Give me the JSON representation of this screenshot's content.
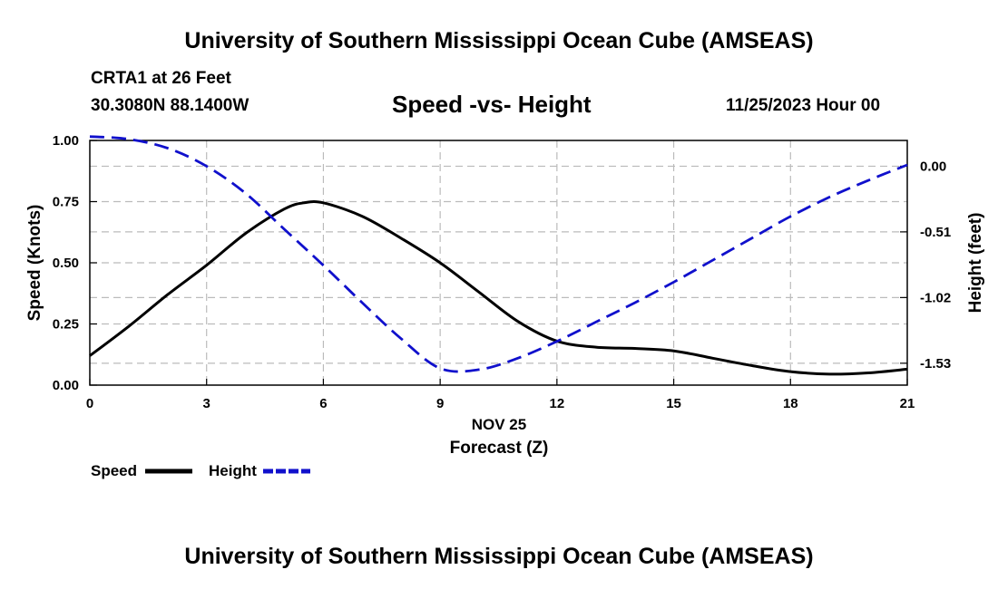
{
  "header": {
    "main_title": "University of Southern Mississippi Ocean Cube (AMSEAS)",
    "station": "CRTA1 at 26 Feet",
    "location": "30.3080N  88.1400W",
    "datetime": "11/25/2023 Hour 00",
    "footer_title": "University of Southern Mississippi Ocean Cube (AMSEAS)"
  },
  "colors": {
    "speed": "#000000",
    "height": "#1010cc",
    "grid": "#bbbbbb"
  },
  "chart_data": {
    "type": "line",
    "title": "Speed -vs- Height",
    "xlabel": "Forecast (Z)",
    "xlabel_date": "NOV 25",
    "ylabel": "Speed (Knots)",
    "ylabel_right": "Height (feet)",
    "xlim": [
      0,
      21
    ],
    "ylim": [
      0,
      1.0
    ],
    "ylim_right": [
      -1.7,
      0.2
    ],
    "x_ticks": [
      0,
      3,
      6,
      9,
      12,
      15,
      18,
      21
    ],
    "y_ticks": [
      "0.00",
      "0.25",
      "0.50",
      "0.75",
      "1.00"
    ],
    "y_ticks_right": [
      "0.00",
      "-0.51",
      "-1.02",
      "-1.53"
    ],
    "legend": [
      {
        "label": "Speed",
        "style": "solid"
      },
      {
        "label": "Height",
        "style": "dashed"
      }
    ],
    "series": [
      {
        "name": "Speed",
        "axis": "left",
        "x": [
          0,
          1,
          2,
          3,
          4,
          5,
          5.5,
          6,
          7,
          8,
          9,
          10,
          11,
          12,
          13,
          14,
          15,
          16,
          17,
          18,
          19,
          20,
          21
        ],
        "values": [
          0.12,
          0.24,
          0.37,
          0.49,
          0.62,
          0.72,
          0.745,
          0.745,
          0.69,
          0.6,
          0.5,
          0.38,
          0.26,
          0.18,
          0.155,
          0.15,
          0.14,
          0.11,
          0.08,
          0.055,
          0.045,
          0.05,
          0.065
        ]
      },
      {
        "name": "Height",
        "axis": "right",
        "x": [
          0,
          1,
          2,
          3,
          4,
          5,
          6,
          7,
          8,
          9,
          10,
          11,
          12,
          13,
          14,
          15,
          16,
          17,
          18,
          19,
          20,
          21
        ],
        "values": [
          0.23,
          0.21,
          0.14,
          0.0,
          -0.21,
          -0.49,
          -0.77,
          -1.06,
          -1.34,
          -1.57,
          -1.58,
          -1.49,
          -1.36,
          -1.21,
          -1.06,
          -0.9,
          -0.73,
          -0.56,
          -0.39,
          -0.24,
          -0.11,
          0.01
        ]
      }
    ]
  }
}
